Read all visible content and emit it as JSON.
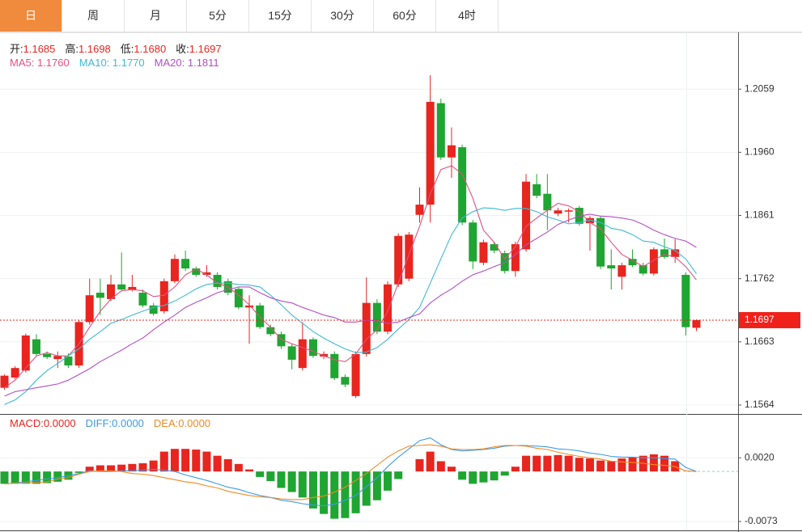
{
  "tabs": [
    "日",
    "周",
    "月",
    "5分",
    "15分",
    "30分",
    "60分",
    "4时"
  ],
  "active_tab": 0,
  "chart_data": [
    {
      "type": "candlestick",
      "info": [
        {
          "label": "开:",
          "value": "1.1685"
        },
        {
          "label": "高:",
          "value": "1.1698"
        },
        {
          "label": "低:",
          "value": "1.1680"
        },
        {
          "label": "收:",
          "value": "1.1697"
        }
      ],
      "info_color": "#e8251e",
      "up_color": "#e8251e",
      "down_color": "#1fa531",
      "open": [
        1.1591,
        1.1607,
        1.1618,
        1.1667,
        1.1644,
        1.1636,
        1.164,
        1.1626,
        1.1694,
        1.174,
        1.173,
        1.1753,
        1.1745,
        1.174,
        1.172,
        1.1711,
        1.1758,
        1.1793,
        1.1778,
        1.1768,
        1.1768,
        1.1758,
        1.1746,
        1.1717,
        1.172,
        1.1686,
        1.1675,
        1.1656,
        1.1622,
        1.1667,
        1.164,
        1.1644,
        1.1608,
        1.1578,
        1.1644,
        1.1724,
        1.1679,
        1.1753,
        1.1762,
        1.1862,
        1.1878,
        1.2037,
        1.1952,
        1.1968,
        1.185,
        1.1787,
        1.1816,
        1.1802,
        1.1774,
        1.1808,
        1.191,
        1.1895,
        1.1864,
        1.1867,
        1.1873,
        1.1849,
        1.1857,
        1.1783,
        1.1765,
        1.1793,
        1.1783,
        1.177,
        1.1808,
        1.1796,
        1.1768,
        1.1685
      ],
      "high": [
        1.1612,
        1.1625,
        1.1676,
        1.1675,
        1.1648,
        1.1648,
        1.1645,
        1.1697,
        1.1762,
        1.1762,
        1.1768,
        1.1803,
        1.1768,
        1.1745,
        1.1724,
        1.1762,
        1.18,
        1.1806,
        1.1781,
        1.1783,
        1.1772,
        1.1762,
        1.1749,
        1.1736,
        1.1724,
        1.169,
        1.1679,
        1.166,
        1.1694,
        1.167,
        1.1648,
        1.1648,
        1.1612,
        1.1648,
        1.1764,
        1.173,
        1.1758,
        1.1833,
        1.1835,
        1.1905,
        1.2081,
        1.2044,
        1.1999,
        1.1972,
        1.1854,
        1.1823,
        1.182,
        1.1806,
        1.182,
        1.1926,
        1.1926,
        1.1926,
        1.1873,
        1.1872,
        1.1876,
        1.186,
        1.186,
        1.1808,
        1.1787,
        1.1808,
        1.1787,
        1.1811,
        1.1825,
        1.1824,
        1.1772,
        1.1698
      ],
      "low": [
        1.1588,
        1.1605,
        1.1615,
        1.164,
        1.1636,
        1.1622,
        1.1622,
        1.1622,
        1.169,
        1.1705,
        1.1727,
        1.1743,
        1.1742,
        1.1717,
        1.1704,
        1.1707,
        1.1755,
        1.1774,
        1.1765,
        1.1765,
        1.1745,
        1.1736,
        1.1714,
        1.166,
        1.1683,
        1.1672,
        1.1652,
        1.162,
        1.1618,
        1.1638,
        1.1636,
        1.1603,
        1.1592,
        1.1575,
        1.164,
        1.1675,
        1.1675,
        1.1749,
        1.1758,
        1.185,
        1.185,
        1.1948,
        1.192,
        1.1846,
        1.1777,
        1.1783,
        1.1802,
        1.177,
        1.1765,
        1.1804,
        1.1888,
        1.1838,
        1.186,
        1.185,
        1.1845,
        1.1806,
        1.1777,
        1.1745,
        1.1745,
        1.178,
        1.1767,
        1.1767,
        1.1793,
        1.1787,
        1.1673,
        1.168
      ],
      "close": [
        1.161,
        1.1622,
        1.1673,
        1.1644,
        1.1639,
        1.1641,
        1.1626,
        1.1694,
        1.1736,
        1.1732,
        1.1753,
        1.1745,
        1.1749,
        1.172,
        1.1707,
        1.1758,
        1.1793,
        1.1778,
        1.1768,
        1.1772,
        1.1749,
        1.174,
        1.1717,
        1.172,
        1.1686,
        1.1675,
        1.1656,
        1.1635,
        1.1667,
        1.1641,
        1.1644,
        1.1606,
        1.1596,
        1.1644,
        1.1724,
        1.1679,
        1.1753,
        1.1829,
        1.1831,
        1.1878,
        1.2039,
        1.1952,
        1.1971,
        1.185,
        1.1789,
        1.1819,
        1.1806,
        1.1774,
        1.1816,
        1.1914,
        1.1892,
        1.1869,
        1.1869,
        1.1869,
        1.1848,
        1.1857,
        1.1781,
        1.1778,
        1.1783,
        1.1783,
        1.177,
        1.1808,
        1.1796,
        1.1808,
        1.1686,
        1.1697
      ],
      "series": [
        {
          "name": "MA5: 1.1760",
          "color": "#e2517f",
          "values": [
            1.1591,
            1.1603,
            1.1622,
            1.1641,
            1.1646,
            1.1641,
            1.1641,
            1.166,
            1.1686,
            1.1711,
            1.173,
            1.1743,
            1.1745,
            1.1743,
            1.1734,
            1.1736,
            1.1749,
            1.1768,
            1.1777,
            1.1768,
            1.1755,
            1.1749,
            1.1736,
            1.1721,
            1.1702,
            1.1686,
            1.1667,
            1.166,
            1.1654,
            1.1648,
            1.1641,
            1.1635,
            1.1632,
            1.1644,
            1.1667,
            1.1682,
            1.1711,
            1.1755,
            1.18,
            1.1844,
            1.1895,
            1.1933,
            1.1939,
            1.1926,
            1.1888,
            1.1838,
            1.1819,
            1.1793,
            1.1812,
            1.1844,
            1.1857,
            1.1869,
            1.188,
            1.1876,
            1.1867,
            1.185,
            1.184,
            1.1819,
            1.18,
            1.1791,
            1.1781,
            1.1791,
            1.18,
            1.1796,
            1.1781,
            1.176
          ]
        },
        {
          "name": "MA10: 1.1770",
          "color": "#3fb9d6",
          "values": [
            1.1565,
            1.1572,
            1.1585,
            1.1603,
            1.1618,
            1.1629,
            1.1641,
            1.1652,
            1.1667,
            1.1679,
            1.1692,
            1.1698,
            1.1705,
            1.1711,
            1.1717,
            1.172,
            1.1727,
            1.1736,
            1.1746,
            1.1753,
            1.1755,
            1.1755,
            1.1753,
            1.1752,
            1.1749,
            1.1736,
            1.1721,
            1.1705,
            1.1692,
            1.1679,
            1.1669,
            1.166,
            1.1652,
            1.1646,
            1.1647,
            1.1654,
            1.1667,
            1.1683,
            1.1698,
            1.1717,
            1.1755,
            1.1793,
            1.1831,
            1.1857,
            1.1867,
            1.1873,
            1.1872,
            1.1869,
            1.1872,
            1.1872,
            1.1867,
            1.1859,
            1.1854,
            1.1848,
            1.185,
            1.1854,
            1.185,
            1.1841,
            1.1838,
            1.1831,
            1.1821,
            1.1819,
            1.1812,
            1.1806,
            1.1793,
            1.177
          ]
        },
        {
          "name": "MA20: 1.1811",
          "color": "#b44fc4",
          "values": [
            1.1578,
            1.1585,
            1.1588,
            1.1591,
            1.1594,
            1.1597,
            1.1603,
            1.1612,
            1.1621,
            1.1632,
            1.1641,
            1.165,
            1.166,
            1.1669,
            1.1682,
            1.1694,
            1.1705,
            1.1717,
            1.1725,
            1.1732,
            1.174,
            1.1745,
            1.1749,
            1.1749,
            1.174,
            1.1732,
            1.1727,
            1.1724,
            1.1717,
            1.1711,
            1.1705,
            1.1701,
            1.1694,
            1.1694,
            1.1697,
            1.1696,
            1.1692,
            1.1694,
            1.1701,
            1.1707,
            1.1724,
            1.1736,
            1.1746,
            1.1758,
            1.1768,
            1.1774,
            1.1781,
            1.1787,
            1.18,
            1.1815,
            1.1825,
            1.1835,
            1.1847,
            1.1854,
            1.186,
            1.1863,
            1.186,
            1.1859,
            1.1857,
            1.1854,
            1.1847,
            1.1838,
            1.1831,
            1.1825,
            1.1821,
            1.1811
          ]
        }
      ],
      "last_price": 1.1697,
      "last_price_color": "#f0211b",
      "ylim": [
        1.155,
        1.2148
      ],
      "yticks": [
        1.2059,
        {
          "value": 1.196,
          "label": "1.1960"
        },
        1.1861,
        1.1762,
        1.1663,
        1.1564
      ],
      "grid": true
    },
    {
      "type": "macd",
      "up_color": "#e8251e",
      "down_color": "#1fa531",
      "histogram": {
        "name": "MACD:0.0000",
        "color": "#e8251e",
        "values": [
          -0.0018,
          -0.0018,
          -0.0018,
          -0.0018,
          -0.0017,
          -0.0015,
          -0.0012,
          -0.0002,
          0.0007,
          0.0009,
          0.0009,
          0.001,
          0.0011,
          0.0012,
          0.0016,
          0.0029,
          0.0033,
          0.0033,
          0.0032,
          0.0029,
          0.0023,
          0.0018,
          0.0011,
          0.0003,
          -0.0008,
          -0.0014,
          -0.0024,
          -0.003,
          -0.0038,
          -0.0054,
          -0.0062,
          -0.0069,
          -0.0068,
          -0.0061,
          -0.005,
          -0.0042,
          -0.0028,
          -0.0011,
          0.0,
          0.0018,
          0.0029,
          0.0015,
          0.0007,
          -0.0012,
          -0.0018,
          -0.0016,
          -0.0013,
          -0.0006,
          0.0007,
          0.0023,
          0.0023,
          0.0023,
          0.0024,
          0.0023,
          0.002,
          0.0019,
          0.0016,
          0.0015,
          0.0019,
          0.0021,
          0.0023,
          0.0025,
          0.0023,
          0.0015,
          0.0,
          0.0
        ]
      },
      "series": [
        {
          "name": "DIFF:0.0000",
          "color": "#3d9be9",
          "values": [
            -0.0018,
            -0.0017,
            -0.0015,
            -0.0013,
            -0.0011,
            -0.0009,
            -0.0006,
            -0.0003,
            0.0001,
            0.0,
            0.0,
            0.0001,
            0.0001,
            0.0002,
            0.0003,
            0.0002,
            0.0,
            -0.0005,
            -0.0009,
            -0.0013,
            -0.0018,
            -0.0023,
            -0.0026,
            -0.0031,
            -0.0035,
            -0.0038,
            -0.0042,
            -0.0044,
            -0.0047,
            -0.0049,
            -0.005,
            -0.0048,
            -0.0042,
            -0.0035,
            -0.0022,
            -0.0009,
            0.0007,
            0.0021,
            0.0033,
            0.0045,
            0.0049,
            0.0039,
            0.0032,
            0.003,
            0.0031,
            0.0032,
            0.0034,
            0.0037,
            0.0038,
            0.0038,
            0.0037,
            0.0036,
            0.0033,
            0.0032,
            0.003,
            0.0027,
            0.0025,
            0.0022,
            0.0021,
            0.0021,
            0.002,
            0.002,
            0.0019,
            0.0018,
            0.0006,
            0.0
          ]
        },
        {
          "name": "DEA:0.0000",
          "color": "#f08a24",
          "values": [
            -0.0018,
            -0.0017,
            -0.0017,
            -0.0016,
            -0.0015,
            -0.0011,
            -0.0009,
            -0.0004,
            0.0,
            0.0001,
            0.0001,
            0.0,
            -0.0003,
            -0.0004,
            -0.0006,
            -0.0009,
            -0.0012,
            -0.0015,
            -0.0017,
            -0.0021,
            -0.0024,
            -0.0029,
            -0.0032,
            -0.0035,
            -0.0037,
            -0.0038,
            -0.004,
            -0.0041,
            -0.0041,
            -0.0038,
            -0.0036,
            -0.003,
            -0.0023,
            -0.0013,
            -0.0003,
            0.0009,
            0.0021,
            0.003,
            0.0037,
            0.0038,
            0.0039,
            0.0037,
            0.0033,
            0.0032,
            0.0032,
            0.0033,
            0.0036,
            0.0038,
            0.0038,
            0.0037,
            0.0034,
            0.0032,
            0.0028,
            0.0025,
            0.0022,
            0.002,
            0.0018,
            0.0015,
            0.0014,
            0.0013,
            0.0012,
            0.001,
            0.0009,
            0.0007,
            0.0001,
            0.0
          ]
        }
      ],
      "ylim": [
        -0.0086,
        0.0084
      ],
      "yticks": [
        {
          "value": 0.002,
          "label": "0.0020"
        },
        -0.0073
      ],
      "grid": true
    }
  ]
}
